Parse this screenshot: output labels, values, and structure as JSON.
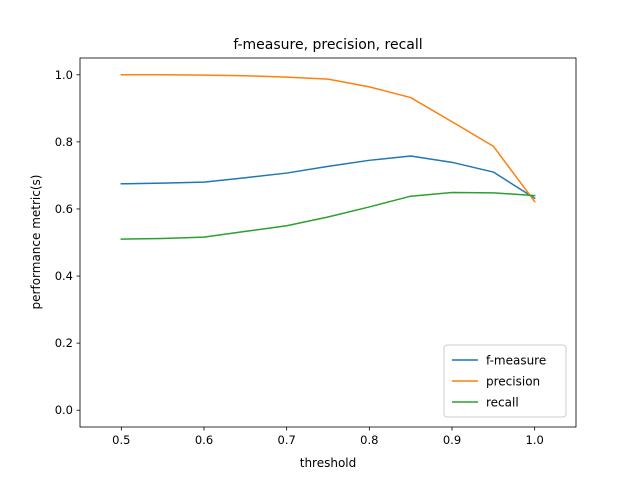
{
  "chart_data": {
    "type": "line",
    "title": "f-measure, precision, recall",
    "xlabel": "threshold",
    "ylabel": "performance metric(s)",
    "xlim": [
      0.45,
      1.05
    ],
    "ylim": [
      -0.05,
      1.05
    ],
    "xticks": [
      0.5,
      0.6,
      0.7,
      0.8,
      0.9,
      1.0
    ],
    "xtick_labels": [
      "0.5",
      "0.6",
      "0.7",
      "0.8",
      "0.9",
      "1.0"
    ],
    "yticks": [
      0.0,
      0.2,
      0.4,
      0.6,
      0.8,
      1.0
    ],
    "ytick_labels": [
      "0.0",
      "0.2",
      "0.4",
      "0.6",
      "0.8",
      "1.0"
    ],
    "grid": false,
    "legend_position": "lower-right",
    "x": [
      0.5,
      0.55,
      0.6,
      0.65,
      0.7,
      0.75,
      0.8,
      0.85,
      0.9,
      0.95,
      1.0
    ],
    "series": [
      {
        "name": "f-measure",
        "color": "#1f77b4",
        "values": [
          0.675,
          0.677,
          0.68,
          0.693,
          0.707,
          0.727,
          0.745,
          0.758,
          0.739,
          0.71,
          0.632
        ]
      },
      {
        "name": "precision",
        "color": "#ff7f0e",
        "values": [
          1.0,
          1.0,
          0.999,
          0.997,
          0.993,
          0.987,
          0.964,
          0.932,
          0.86,
          0.787,
          0.622
        ]
      },
      {
        "name": "recall",
        "color": "#2ca02c",
        "values": [
          0.51,
          0.512,
          0.516,
          0.533,
          0.55,
          0.576,
          0.606,
          0.638,
          0.649,
          0.648,
          0.64
        ]
      }
    ]
  }
}
